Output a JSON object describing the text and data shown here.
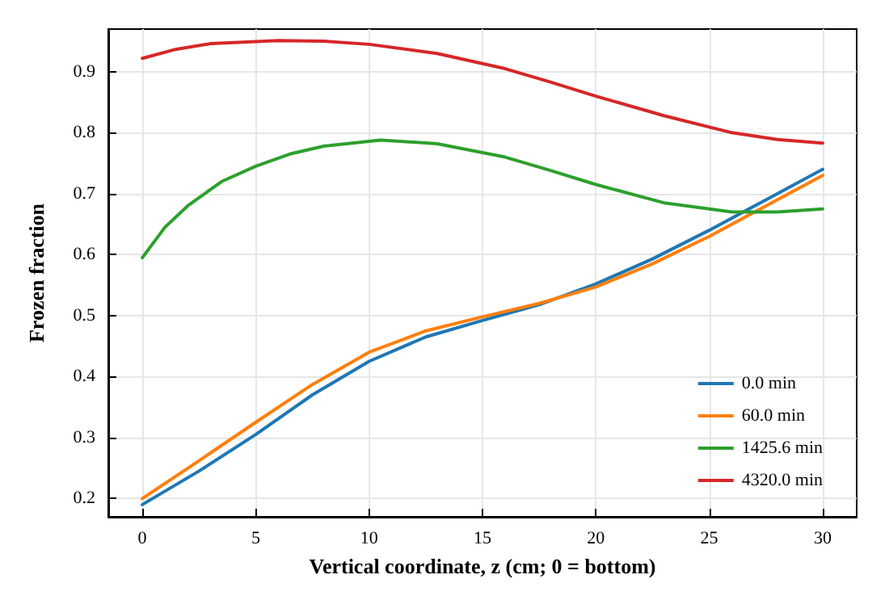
{
  "chart_data": {
    "type": "line",
    "xlabel": "Vertical coordinate, z (cm; 0 = bottom)",
    "ylabel": "Frozen fraction",
    "xlim": [
      -1.5,
      31.5
    ],
    "xticks": [
      0,
      5,
      10,
      15,
      20,
      25,
      30
    ],
    "ylim": [
      0.17,
      0.97
    ],
    "yticks": [
      0.2,
      0.3,
      0.4,
      0.5,
      0.6,
      0.7,
      0.8,
      0.9
    ],
    "grid": true,
    "legend": "bottom right",
    "marker": "none",
    "line_style": "solid",
    "series": [
      {
        "name": "0.0 min",
        "color": "#1f77b4",
        "x": [
          0,
          2.5,
          5,
          7.5,
          10,
          12.5,
          15,
          17.5,
          20,
          22.5,
          25,
          27.5,
          30
        ],
        "values": [
          0.19,
          0.245,
          0.305,
          0.37,
          0.425,
          0.465,
          0.492,
          0.518,
          0.552,
          0.593,
          0.64,
          0.69,
          0.74
        ]
      },
      {
        "name": "60.0 min",
        "color": "#ff7f0e",
        "x": [
          0,
          2.5,
          5,
          7.5,
          10,
          12.5,
          15,
          17.5,
          20,
          22.5,
          25,
          27.5,
          30
        ],
        "values": [
          0.2,
          0.262,
          0.325,
          0.387,
          0.44,
          0.475,
          0.498,
          0.52,
          0.547,
          0.585,
          0.63,
          0.68,
          0.73
        ]
      },
      {
        "name": "1425.6 min",
        "color": "#2ca02c",
        "x": [
          0,
          1,
          2,
          3.5,
          5,
          6.5,
          8,
          10.5,
          13,
          16,
          18,
          20,
          23,
          26,
          28,
          30
        ],
        "values": [
          0.595,
          0.645,
          0.68,
          0.72,
          0.745,
          0.765,
          0.778,
          0.788,
          0.782,
          0.76,
          0.738,
          0.715,
          0.685,
          0.67,
          0.67,
          0.675
        ]
      },
      {
        "name": "4320.0 min",
        "color": "#d62728",
        "x": [
          0,
          1.5,
          3,
          6,
          8,
          10,
          13,
          16,
          18,
          20,
          23,
          26,
          28,
          30
        ],
        "values": [
          0.922,
          0.937,
          0.946,
          0.951,
          0.95,
          0.945,
          0.93,
          0.905,
          0.883,
          0.86,
          0.828,
          0.8,
          0.789,
          0.783
        ]
      }
    ]
  }
}
